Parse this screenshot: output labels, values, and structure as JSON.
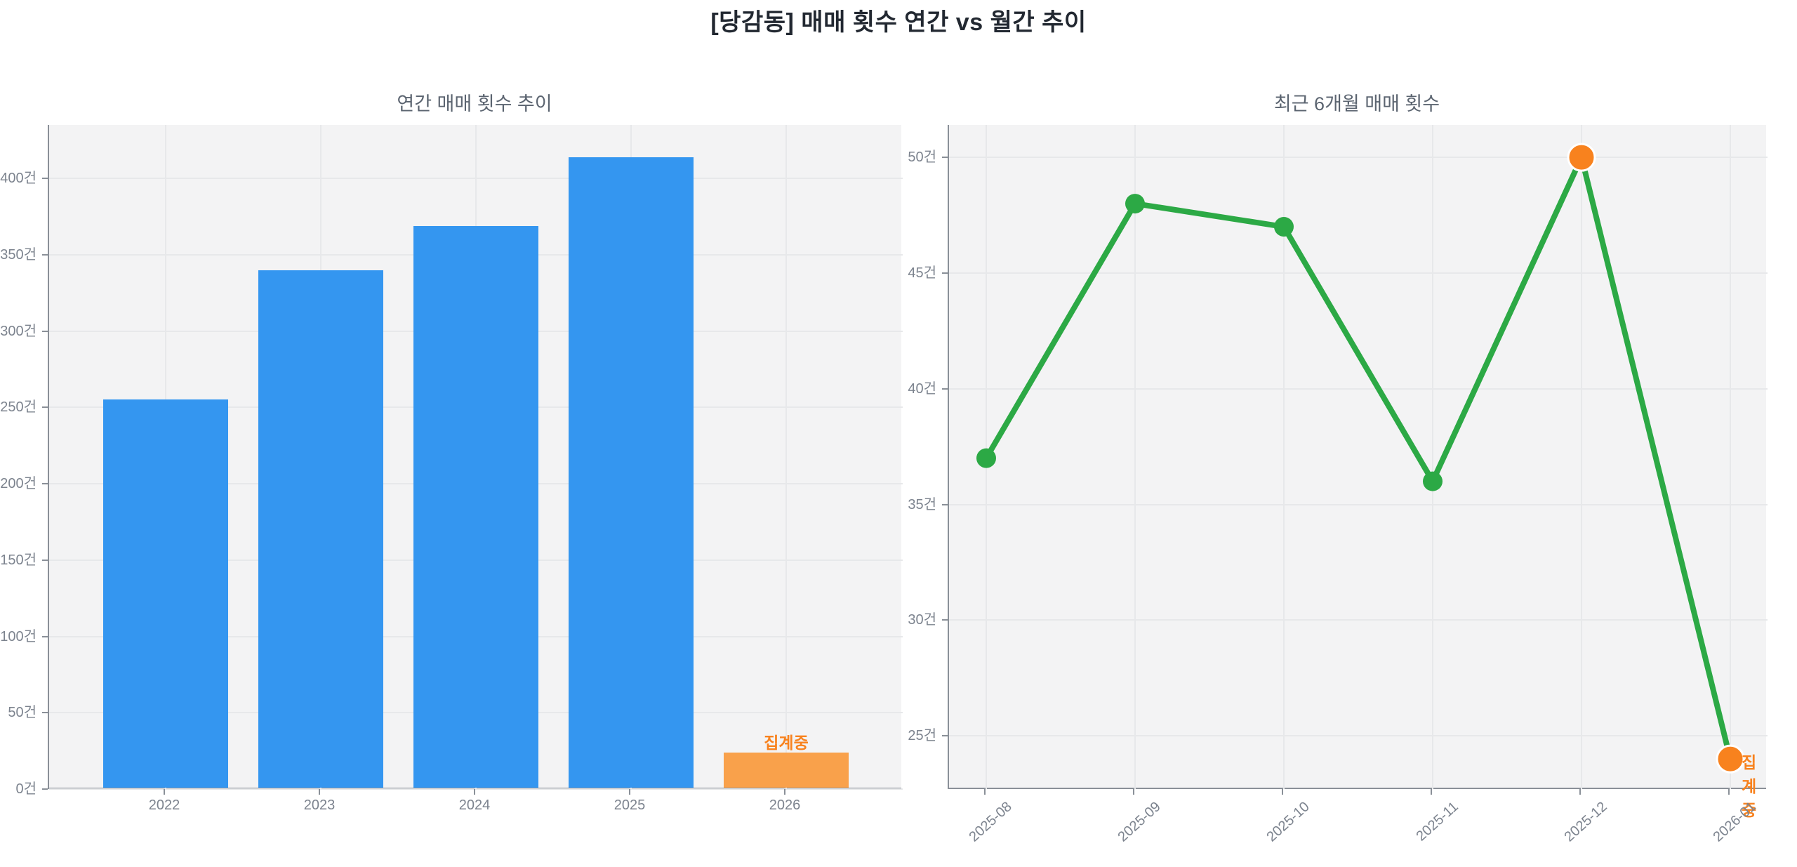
{
  "header": {
    "title": "[당감동] 매매 횟수 연간 vs 월간 추이"
  },
  "colors": {
    "bar_blue": "#3496f0",
    "bar_orange": "#f9a14b",
    "line_green": "#2ca945",
    "marker_orange": "#f8821e",
    "annotation_orange": "#f8821e",
    "title_dark": "#222831",
    "subtitle_gray": "#5b6470",
    "tick_gray": "#7c838e",
    "spine_gray": "#8a9098",
    "plot_bg": "#f3f3f4",
    "grid": "#e7e8ea"
  },
  "chart_data": [
    {
      "type": "bar",
      "title": "연간 매매 횟수 추이",
      "categories": [
        "2022",
        "2023",
        "2024",
        "2025",
        "2026"
      ],
      "values": [
        255,
        340,
        369,
        414,
        24
      ],
      "bar_colors": [
        "#3496f0",
        "#3496f0",
        "#3496f0",
        "#3496f0",
        "#f9a14b"
      ],
      "unit": "건",
      "ytick_values": [
        0,
        50,
        100,
        150,
        200,
        250,
        300,
        350,
        400
      ],
      "ytick_labels": [
        "0건",
        "50건",
        "100건",
        "150건",
        "200건",
        "250건",
        "300건",
        "350건",
        "400건"
      ],
      "ylim": [
        0,
        435
      ],
      "grid": true,
      "annotations": [
        {
          "category_index": 4,
          "text": "집계중",
          "color": "#f8821e"
        }
      ]
    },
    {
      "type": "line",
      "title": "최근 6개월 매매 횟수",
      "categories": [
        "2025-08",
        "2025-09",
        "2025-10",
        "2025-11",
        "2025-12",
        "2026-01"
      ],
      "values": [
        37,
        48,
        47,
        36,
        50,
        24
      ],
      "unit": "건",
      "line_color": "#2ca945",
      "point_colors": [
        "#2ca945",
        "#2ca945",
        "#2ca945",
        "#2ca945",
        "#f8821e",
        "#f8821e"
      ],
      "ytick_values": [
        25,
        30,
        35,
        40,
        45,
        50
      ],
      "ytick_labels": [
        "25건",
        "30건",
        "35건",
        "40건",
        "45건",
        "50건"
      ],
      "ylim": [
        22.7,
        51.4
      ],
      "grid": true,
      "annotations": [
        {
          "category_index": 5,
          "text": "집계중",
          "color": "#f8821e"
        }
      ]
    }
  ]
}
